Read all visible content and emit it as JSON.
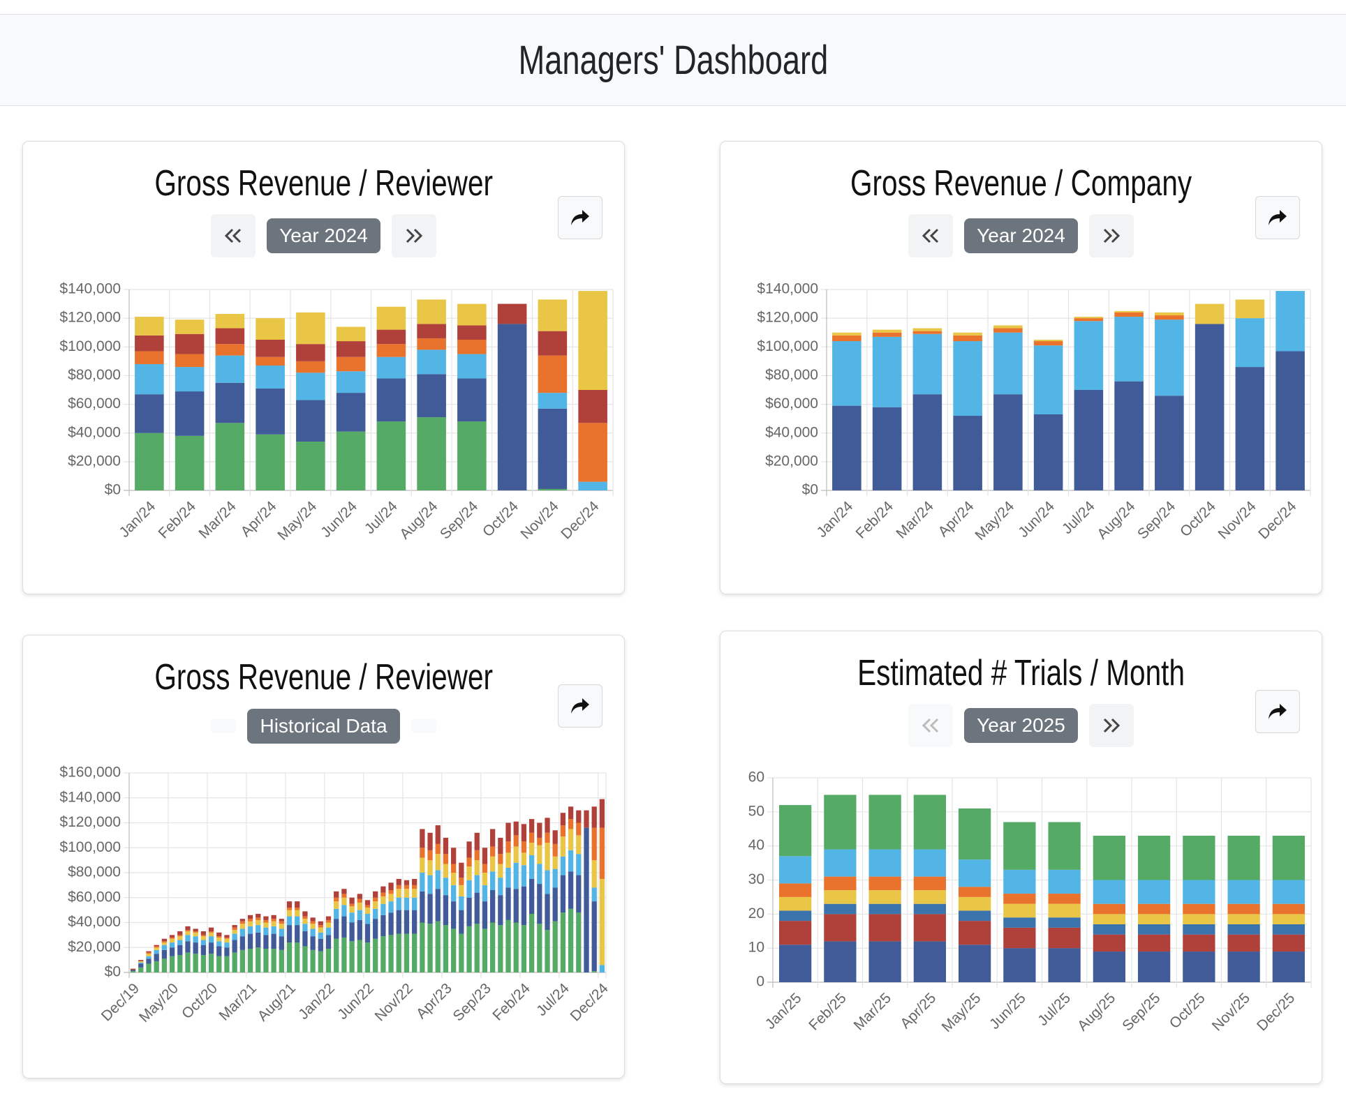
{
  "header": {
    "title": "Managers' Dashboard"
  },
  "chart_data": [
    {
      "type": "bar",
      "stacked": true,
      "title": "Gross Revenue / Reviewer",
      "period": "Year 2024",
      "grid": true,
      "categories": [
        "Jan/24",
        "Feb/24",
        "Mar/24",
        "Apr/24",
        "May/24",
        "Jun/24",
        "Jul/24",
        "Aug/24",
        "Sep/24",
        "Oct/24",
        "Nov/24",
        "Dec/24"
      ],
      "series": [
        {
          "color": "#55aa66",
          "values": [
            40000,
            38000,
            47000,
            39000,
            34000,
            41000,
            48000,
            51000,
            48000,
            0,
            1000,
            0
          ]
        },
        {
          "color": "#405b97",
          "values": [
            27000,
            31000,
            28000,
            32000,
            29000,
            27000,
            30000,
            30000,
            30000,
            116000,
            56000,
            0
          ]
        },
        {
          "color": "#52b5e6",
          "values": [
            21000,
            17000,
            19000,
            16000,
            19000,
            15000,
            15000,
            17000,
            17000,
            0,
            11000,
            6000
          ]
        },
        {
          "color": "#e9732c",
          "values": [
            9000,
            9000,
            8000,
            6000,
            8000,
            10000,
            9000,
            8000,
            10000,
            0,
            26000,
            41000
          ]
        },
        {
          "color": "#b0413a",
          "values": [
            11000,
            14000,
            11000,
            12000,
            12000,
            11000,
            10000,
            10000,
            10000,
            14000,
            17000,
            23000
          ]
        },
        {
          "color": "#e9c646",
          "values": [
            13000,
            10000,
            10000,
            15000,
            22000,
            10000,
            16000,
            17000,
            15000,
            0,
            22000,
            69000
          ]
        }
      ],
      "ylim": [
        0,
        140000
      ],
      "yticks": [
        {
          "value": 0,
          "label": "$0"
        },
        {
          "value": 20000,
          "label": "$20,000"
        },
        {
          "value": 40000,
          "label": "$40,000"
        },
        {
          "value": 60000,
          "label": "$60,000"
        },
        {
          "value": 80000,
          "label": "$80,000"
        },
        {
          "value": 100000,
          "label": "$100,000"
        },
        {
          "value": 120000,
          "label": "$120,000"
        },
        {
          "value": 140000,
          "label": "$140,000"
        }
      ]
    },
    {
      "type": "bar",
      "stacked": true,
      "title": "Gross Revenue / Company",
      "period": "Year 2024",
      "grid": true,
      "categories": [
        "Jan/24",
        "Feb/24",
        "Mar/24",
        "Apr/24",
        "May/24",
        "Jun/24",
        "Jul/24",
        "Aug/24",
        "Sep/24",
        "Oct/24",
        "Nov/24",
        "Dec/24"
      ],
      "series": [
        {
          "color": "#405b97",
          "values": [
            59000,
            58000,
            67000,
            52000,
            67000,
            53000,
            70000,
            76000,
            66000,
            116000,
            86000,
            97000
          ]
        },
        {
          "color": "#52b5e6",
          "values": [
            45000,
            49000,
            42000,
            52000,
            43000,
            48000,
            48000,
            45000,
            53000,
            0,
            34000,
            42000
          ]
        },
        {
          "color": "#e9732c",
          "values": [
            4000,
            3000,
            2000,
            4000,
            3000,
            3000,
            2000,
            3000,
            3000,
            0,
            0,
            0
          ]
        },
        {
          "color": "#e9c646",
          "values": [
            2000,
            2000,
            2000,
            2000,
            2000,
            1000,
            1000,
            1000,
            2000,
            14000,
            13000,
            0
          ]
        }
      ],
      "ylim": [
        0,
        140000
      ],
      "yticks": [
        {
          "value": 0,
          "label": "$0"
        },
        {
          "value": 20000,
          "label": "$20,000"
        },
        {
          "value": 40000,
          "label": "$40,000"
        },
        {
          "value": 60000,
          "label": "$60,000"
        },
        {
          "value": 80000,
          "label": "$80,000"
        },
        {
          "value": 100000,
          "label": "$100,000"
        },
        {
          "value": 120000,
          "label": "$120,000"
        },
        {
          "value": 140000,
          "label": "$140,000"
        }
      ]
    },
    {
      "type": "bar",
      "stacked": true,
      "title": "Gross Revenue / Reviewer",
      "period": "Historical Data",
      "grid": true,
      "categories": [
        "Dec/19",
        null,
        null,
        null,
        null,
        "May/20",
        null,
        null,
        null,
        null,
        "Oct/20",
        null,
        null,
        null,
        null,
        "Mar/21",
        null,
        null,
        null,
        null,
        "Aug/21",
        null,
        null,
        null,
        null,
        "Jan/22",
        null,
        null,
        null,
        null,
        "Jun/22",
        null,
        null,
        null,
        null,
        "Nov/22",
        null,
        null,
        null,
        null,
        "Apr/23",
        null,
        null,
        null,
        null,
        "Sep/23",
        null,
        null,
        null,
        null,
        "Feb/24",
        null,
        null,
        null,
        null,
        "Jul/24",
        null,
        null,
        null,
        null,
        "Dec/24"
      ],
      "series": [
        {
          "color": "#55aa66",
          "values": [
            1000,
            4000,
            7000,
            9000,
            11000,
            13000,
            14000,
            16000,
            15000,
            14000,
            15000,
            13000,
            13000,
            16000,
            18000,
            19000,
            20000,
            19000,
            19000,
            18000,
            24000,
            24000,
            21000,
            18000,
            17000,
            19000,
            27000,
            28000,
            25000,
            26000,
            24000,
            27000,
            29000,
            30000,
            31000,
            31000,
            31000,
            40000,
            39000,
            41000,
            38000,
            35000,
            31000,
            37000,
            39000,
            35000,
            40000,
            38000,
            42000,
            40000,
            38000,
            47000,
            39000,
            34000,
            41000,
            48000,
            51000,
            48000,
            0,
            1000,
            0
          ]
        },
        {
          "color": "#405b97",
          "values": [
            1000,
            3000,
            4000,
            6000,
            7000,
            7000,
            8000,
            9000,
            9000,
            8000,
            9000,
            8000,
            7000,
            10000,
            11000,
            12000,
            12000,
            11000,
            12000,
            11000,
            14000,
            14000,
            12000,
            11000,
            10000,
            11000,
            16000,
            17000,
            15000,
            16000,
            15000,
            16000,
            17000,
            18000,
            19000,
            19000,
            19000,
            25000,
            24000,
            26000,
            24000,
            22000,
            19000,
            23000,
            25000,
            22000,
            26000,
            24000,
            26000,
            27000,
            31000,
            28000,
            32000,
            29000,
            27000,
            30000,
            30000,
            30000,
            116000,
            56000,
            0
          ]
        },
        {
          "color": "#52b5e6",
          "values": [
            0,
            1000,
            2000,
            3000,
            4000,
            4000,
            4000,
            5000,
            5000,
            4000,
            5000,
            4000,
            4000,
            5000,
            6000,
            6000,
            6000,
            6000,
            6000,
            6000,
            7000,
            7000,
            6000,
            6000,
            5000,
            6000,
            8000,
            9000,
            8000,
            8000,
            8000,
            8000,
            9000,
            9000,
            10000,
            10000,
            10000,
            15000,
            15000,
            15000,
            14000,
            13000,
            11000,
            14000,
            14000,
            13000,
            15000,
            14000,
            16000,
            21000,
            17000,
            19000,
            16000,
            19000,
            15000,
            15000,
            17000,
            17000,
            0,
            11000,
            6000
          ]
        },
        {
          "color": "#e9c646",
          "values": [
            0,
            1000,
            2000,
            2000,
            2000,
            3000,
            3000,
            3000,
            3000,
            3000,
            3000,
            3000,
            3000,
            3000,
            4000,
            4000,
            4000,
            4000,
            4000,
            4000,
            5000,
            5000,
            4000,
            4000,
            4000,
            4000,
            6000,
            6000,
            5000,
            6000,
            5000,
            6000,
            6000,
            6000,
            7000,
            7000,
            7000,
            12000,
            12000,
            13000,
            11000,
            10000,
            9000,
            11000,
            12000,
            10000,
            12000,
            11000,
            12000,
            13000,
            10000,
            10000,
            15000,
            22000,
            10000,
            16000,
            17000,
            15000,
            0,
            22000,
            69000
          ]
        },
        {
          "color": "#e9732c",
          "values": [
            0,
            0,
            1000,
            1000,
            1000,
            1000,
            1000,
            1000,
            1000,
            1000,
            1000,
            1000,
            1000,
            2000,
            2000,
            2000,
            2000,
            2000,
            2000,
            2000,
            2000,
            2000,
            2000,
            2000,
            2000,
            2000,
            3000,
            3000,
            2000,
            3000,
            2000,
            3000,
            3000,
            3000,
            3000,
            3000,
            3000,
            8000,
            8000,
            8000,
            8000,
            7000,
            6000,
            7000,
            8000,
            7000,
            8000,
            8000,
            9000,
            9000,
            9000,
            8000,
            6000,
            8000,
            10000,
            9000,
            8000,
            10000,
            0,
            26000,
            41000
          ]
        },
        {
          "color": "#b0413a",
          "values": [
            1000,
            1000,
            1000,
            1000,
            2000,
            2000,
            3000,
            3000,
            2000,
            3000,
            3000,
            3000,
            2000,
            2000,
            2000,
            3000,
            3000,
            3000,
            3000,
            2000,
            5000,
            5000,
            4000,
            3000,
            3000,
            3000,
            5000,
            4000,
            5000,
            4000,
            4000,
            5000,
            5000,
            6000,
            5000,
            4000,
            5000,
            15000,
            14000,
            15000,
            13000,
            13000,
            12000,
            13000,
            14000,
            13000,
            14000,
            13000,
            15000,
            11000,
            14000,
            11000,
            12000,
            12000,
            11000,
            10000,
            10000,
            10000,
            14000,
            17000,
            23000
          ]
        }
      ],
      "ylim": [
        0,
        160000
      ],
      "yticks": [
        {
          "value": 0,
          "label": "$0"
        },
        {
          "value": 20000,
          "label": "$20,000"
        },
        {
          "value": 40000,
          "label": "$40,000"
        },
        {
          "value": 60000,
          "label": "$60,000"
        },
        {
          "value": 80000,
          "label": "$80,000"
        },
        {
          "value": 100000,
          "label": "$100,000"
        },
        {
          "value": 120000,
          "label": "$120,000"
        },
        {
          "value": 140000,
          "label": "$140,000"
        },
        {
          "value": 160000,
          "label": "$160,000"
        }
      ]
    },
    {
      "type": "bar",
      "stacked": true,
      "title": "Estimated # Trials / Month",
      "period": "Year 2025",
      "grid": true,
      "categories": [
        "Jan/25",
        "Feb/25",
        "Mar/25",
        "Apr/25",
        "May/25",
        "Jun/25",
        "Jul/25",
        "Aug/25",
        "Sep/25",
        "Oct/25",
        "Nov/25",
        "Dec/25"
      ],
      "series": [
        {
          "color": "#405b97",
          "values": [
            11,
            12,
            12,
            12,
            11,
            10,
            10,
            9,
            9,
            9,
            9,
            9
          ]
        },
        {
          "color": "#b0413a",
          "values": [
            7,
            8,
            8,
            8,
            7,
            6,
            6,
            5,
            5,
            5,
            5,
            5
          ]
        },
        {
          "color": "#3b74ad",
          "values": [
            3,
            3,
            3,
            3,
            3,
            3,
            3,
            3,
            3,
            3,
            3,
            3
          ]
        },
        {
          "color": "#e9c646",
          "values": [
            4,
            4,
            4,
            4,
            4,
            4,
            4,
            3,
            3,
            3,
            3,
            3
          ]
        },
        {
          "color": "#e9732c",
          "values": [
            4,
            4,
            4,
            4,
            3,
            3,
            3,
            3,
            3,
            3,
            3,
            3
          ]
        },
        {
          "color": "#52b5e6",
          "values": [
            8,
            8,
            8,
            8,
            8,
            7,
            7,
            7,
            7,
            7,
            7,
            7
          ]
        },
        {
          "color": "#55aa66",
          "values": [
            15,
            16,
            16,
            16,
            15,
            14,
            14,
            13,
            13,
            13,
            13,
            13
          ]
        }
      ],
      "ylim": [
        0,
        60
      ],
      "yticks": [
        0,
        10,
        20,
        30,
        40,
        50,
        60
      ]
    }
  ]
}
